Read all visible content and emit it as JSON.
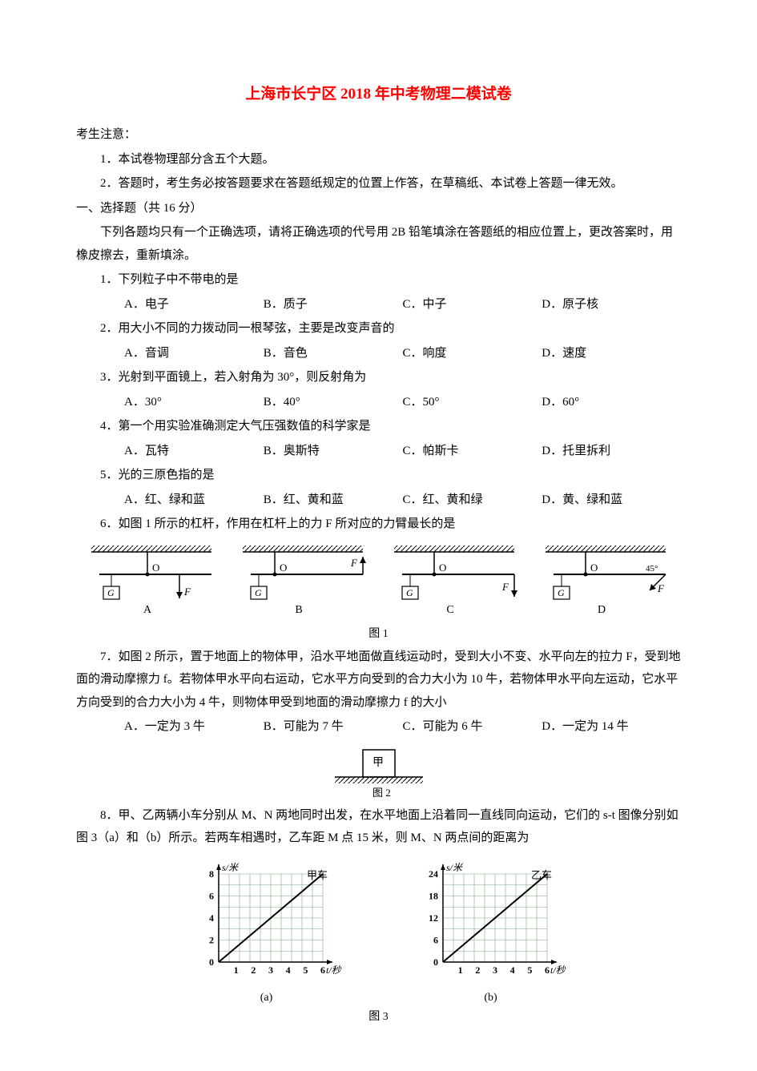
{
  "title": "上海市长宁区 2018 年中考物理二模试卷",
  "notice_head": "考生注意：",
  "notices": [
    "1．本试卷物理部分含五个大题。",
    "2．答题时，考生务必按答题要求在答题纸规定的位置上作答，在草稿纸、本试卷上答题一律无效。"
  ],
  "section1_head": "一、选择题（共 16 分）",
  "section1_desc": "下列各题均只有一个正确选项，请将正确选项的代号用 2B 铅笔填涂在答题纸的相应位置上，更改答案时，用橡皮擦去，重新填涂。",
  "q1": {
    "stem": "1．下列粒子中不带电的是",
    "a": "A．电子",
    "b": "B．质子",
    "c": "C．中子",
    "d": "D．原子核"
  },
  "q2": {
    "stem": "2．用大小不同的力拨动同一根琴弦，主要是改变声音的",
    "a": "A．音调",
    "b": "B．音色",
    "c": "C．响度",
    "d": "D．速度"
  },
  "q3": {
    "stem": "3．光射到平面镜上，若入射角为 30°，则反射角为",
    "a": "A．30°",
    "b": "B．40°",
    "c": "C．50°",
    "d": "D．60°"
  },
  "q4": {
    "stem": "4．第一个用实验准确测定大气压强数值的科学家是",
    "a": "A．瓦特",
    "b": "B．奥斯特",
    "c": "C．帕斯卡",
    "d": "D．托里拆利"
  },
  "q5": {
    "stem": "5．光的三原色指的是",
    "a": "A．红、绿和蓝",
    "b": "B．红、黄和蓝",
    "c": "C．红、黄和绿",
    "d": "D．黄、绿和蓝"
  },
  "q6": {
    "stem": "6．如图 1 所示的杠杆，作用在杠杆上的力 F 所对应的力臂最长的是",
    "labels": {
      "a": "A",
      "b": "B",
      "c": "C",
      "d": "D",
      "fig": "图 1"
    }
  },
  "q7": {
    "stem": "7．如图 2 所示，置于地面上的物体甲，沿水平地面做直线运动时，受到大小不变、水平向左的拉力 F，受到地面的滑动摩擦力 f。若物体甲水平向右运动，它水平方向受到的合力大小为 10 牛，若物体甲水平向左运动，它水平方向受到的合力大小为 4 牛，则物体甲受到地面的滑动摩擦力 f 的大小",
    "a": "A．一定为 3 牛",
    "b": "B．可能为 7 牛",
    "c": "C．可能为 6 牛",
    "d": "D．一定为 14 牛",
    "block_label": "甲",
    "fig_label": "图 2"
  },
  "q8": {
    "stem": "8．甲、乙两辆小车分别从 M、N 两地同时出发，在水平地面上沿着同一直线同向运动，它们的 s-t 图像分别如图 3（a）和（b）所示。若两车相遇时，乙车距 M 点 15 米，则 M、N 两点间的距离为",
    "caption_a": "(a)",
    "caption_b": "(b)",
    "fig_label": "图 3",
    "chart_a": {
      "title": "甲车",
      "ylabel": "s/米",
      "xlabel": "t/秒",
      "yticks": [
        0,
        2,
        4,
        6,
        8
      ],
      "xticks": [
        0,
        1,
        2,
        3,
        4,
        5,
        6
      ],
      "line": [
        [
          0,
          0
        ],
        [
          6,
          8
        ]
      ],
      "grid": "#7fa87f",
      "axis": "#000000",
      "bg": "#ffffff"
    },
    "chart_b": {
      "title": "乙车",
      "ylabel": "s/米",
      "xlabel": "t/秒",
      "yticks": [
        0,
        6,
        12,
        18,
        24
      ],
      "xticks": [
        0,
        1,
        2,
        3,
        4,
        5,
        6
      ],
      "line": [
        [
          0,
          0
        ],
        [
          6,
          24
        ]
      ],
      "grid": "#7fa87f",
      "axis": "#000000",
      "bg": "#ffffff"
    }
  },
  "colors": {
    "title": "#ff0000",
    "text": "#000000",
    "hatch": "#000000"
  }
}
